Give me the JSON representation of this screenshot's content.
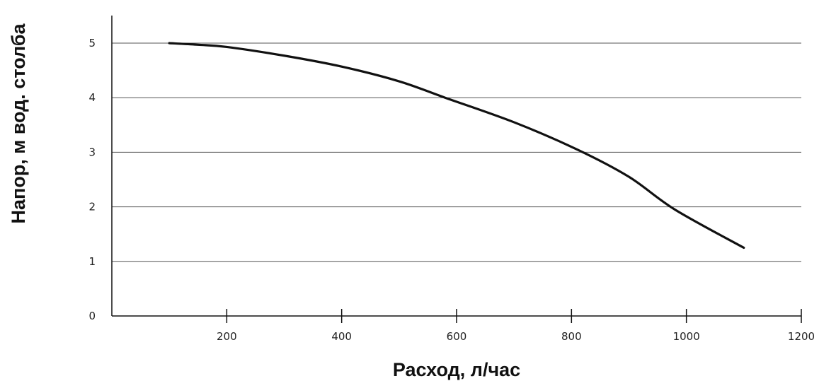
{
  "chart_data": {
    "type": "line",
    "title": "",
    "xlabel": "Расход, л/час",
    "ylabel": "Напор, м вод. столба",
    "xlim": [
      0,
      1200
    ],
    "ylim": [
      0,
      5
    ],
    "x_ticks": [
      200,
      400,
      600,
      800,
      1000,
      1200
    ],
    "y_ticks": [
      0,
      1,
      2,
      3,
      4,
      5
    ],
    "grid": "horizontal",
    "series": [
      {
        "color": "#111111",
        "x": [
          100,
          150,
          200,
          300,
          400,
          500,
          580,
          700,
          810,
          900,
          980,
          1100
        ],
        "y": [
          5.0,
          4.97,
          4.93,
          4.77,
          4.57,
          4.3,
          4.0,
          3.55,
          3.05,
          2.55,
          1.95,
          1.25
        ]
      }
    ]
  }
}
